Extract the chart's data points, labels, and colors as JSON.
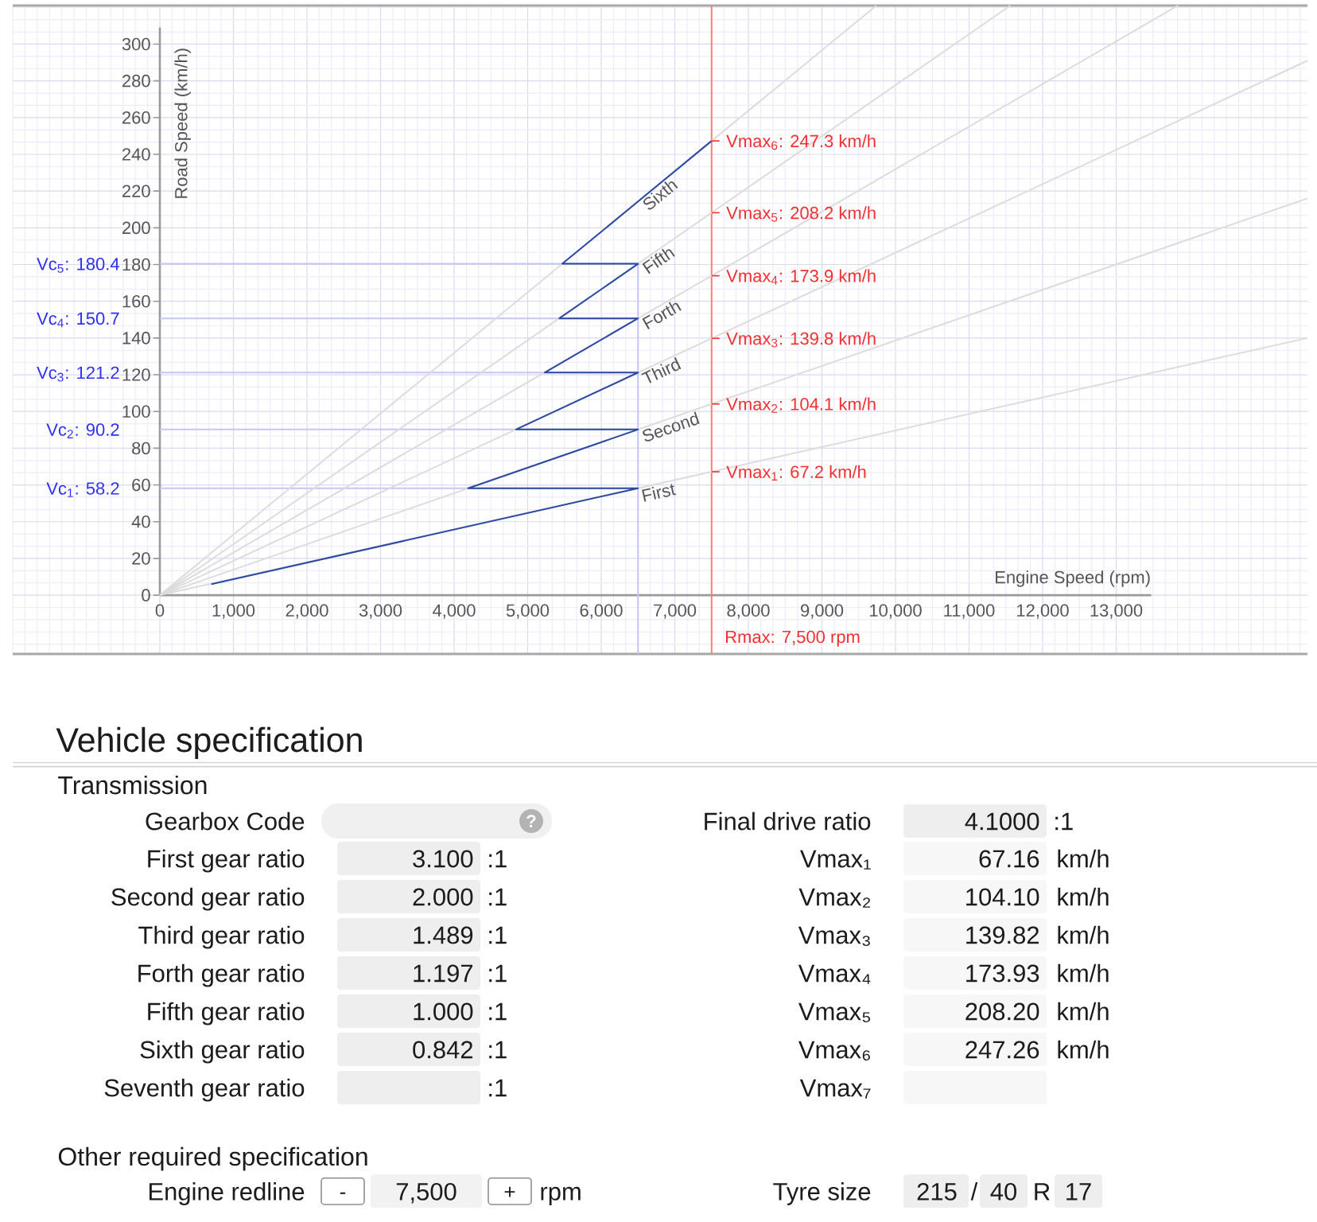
{
  "chart_data": [
    {
      "type": "line",
      "xlabel": "Engine Speed (rpm)",
      "ylabel": "Road Speed (km/h)",
      "xlim": [
        -2000,
        15600
      ],
      "ylim": [
        -32,
        321
      ],
      "xticks": [
        0,
        {
          "value": 1000,
          "label": "1,000"
        },
        {
          "value": 2000,
          "label": "2,000"
        },
        {
          "value": 3000,
          "label": "3,000"
        },
        {
          "value": 4000,
          "label": "4,000"
        },
        {
          "value": 5000,
          "label": "5,000"
        },
        {
          "value": 6000,
          "label": "6,000"
        },
        {
          "value": 7000,
          "label": "7,000"
        },
        {
          "value": 8000,
          "label": "8,000"
        },
        {
          "value": 9000,
          "label": "9,000"
        },
        {
          "value": 10000,
          "label": "10,000"
        },
        {
          "value": 11000,
          "label": "11,000"
        },
        {
          "value": 12000,
          "label": "12,000"
        },
        {
          "value": 13000,
          "label": "13,000"
        }
      ],
      "yticks": [
        0,
        20,
        40,
        60,
        80,
        100,
        120,
        140,
        160,
        180,
        200,
        220,
        240,
        260,
        280,
        300
      ],
      "grid": true,
      "series": [
        {
          "name": "First",
          "color": "#dcdcdc",
          "x": [
            0,
            7500,
            15600
          ],
          "values": [
            0,
            67.2,
            140
          ],
          "value_labels": [
            null,
            "Vmax$_{1}$: 67.2 km/h",
            null
          ]
        },
        {
          "name": "Second",
          "color": "#dcdcdc",
          "x": [
            0,
            7500,
            15600
          ],
          "values": [
            0,
            104.1,
            216
          ],
          "value_labels": [
            null,
            "Vmax$_{2}$: 104.1 km/h",
            null
          ]
        },
        {
          "name": "Third",
          "color": "#dcdcdc",
          "x": [
            0,
            7500,
            15600
          ],
          "values": [
            0,
            139.8,
            291
          ],
          "value_labels": [
            null,
            "Vmax$_{3}$: 139.8 km/h",
            null
          ]
        },
        {
          "name": "Forth",
          "color": "#dcdcdc",
          "x": [
            0,
            7500,
            13840
          ],
          "values": [
            0,
            173.9,
            321
          ],
          "value_labels": [
            null,
            "Vmax$_{4}$: 173.9 km/h",
            null
          ]
        },
        {
          "name": "Fifth",
          "color": "#dcdcdc",
          "x": [
            0,
            7500,
            11560
          ],
          "values": [
            0,
            208.2,
            321
          ],
          "value_labels": [
            null,
            "Vmax$_{5}$: 208.2 km/h",
            null
          ]
        },
        {
          "name": "Sixth",
          "color": "#dcdcdc",
          "x": [
            0,
            7500,
            9740
          ],
          "values": [
            0,
            247.3,
            321
          ],
          "value_labels": [
            null,
            "Vmax$_{6}$: 247.3 km/h",
            null
          ]
        },
        {
          "color": "#2d4aa3",
          "x": [
            700,
            6500,
            4190,
            6500,
            4840,
            6500,
            5230,
            6500,
            5430,
            6500,
            5470,
            7500
          ],
          "values": [
            6,
            58.2,
            58.2,
            90.2,
            90.2,
            121.2,
            121.2,
            150.7,
            150.7,
            180.4,
            180.4,
            247.3
          ]
        }
      ],
      "ref_lines": [
        {
          "axis": "x",
          "value": 6500,
          "color": "#c6c6f6"
        },
        {
          "axis": "x",
          "value": 7500,
          "label": "Rmax: 7,500 rpm",
          "color": "#ff7a7a"
        },
        {
          "axis": "y",
          "value": 58.2,
          "label": "Vc$_{1}$: 58.2",
          "color": "#c6c6f6"
        },
        {
          "axis": "y",
          "value": 90.2,
          "label": "Vc$_{2}$: 90.2",
          "color": "#c6c6f6"
        },
        {
          "axis": "y",
          "value": 121.2,
          "label": "Vc$_{3}$: 121.2",
          "color": "#c6c6f6"
        },
        {
          "axis": "y",
          "value": 150.7,
          "label": "Vc$_{4}$: 150.7",
          "color": "#c6c6f6"
        },
        {
          "axis": "y",
          "value": 180.4,
          "label": "Vc$_{5}$: 180.4",
          "color": "#c6c6f6"
        }
      ]
    },
    {
      "type": "other",
      "title": "Vehicle specification",
      "annotations": [
        "Transmission",
        "Gearbox Code",
        "?",
        "First gear ratio",
        "3.100",
        ":1",
        "Second gear ratio",
        "2.000",
        ":1",
        "Third gear ratio",
        "1.489",
        ":1",
        "Forth gear ratio",
        "1.197",
        ":1",
        "Fifth gear ratio",
        "1.000",
        ":1",
        "Sixth gear ratio",
        "0.842",
        ":1",
        "Seventh gear ratio",
        ":1",
        "Other required specification",
        "Engine redline",
        "-",
        "7,500",
        "+",
        "rpm",
        "Final drive ratio",
        "4.1000",
        ":1",
        "Vmax₁",
        "67.16",
        "km/h",
        "Vmax₂",
        "104.10",
        "km/h",
        "Vmax₃",
        "139.82",
        "km/h",
        "Vmax₄",
        "173.93",
        "km/h",
        "Vmax₅",
        "208.20",
        "km/h",
        "Vmax₆",
        "247.26",
        "km/h",
        "Vmax₇",
        "Tyre size",
        "215",
        "/",
        "40",
        "R",
        "17"
      ]
    }
  ]
}
